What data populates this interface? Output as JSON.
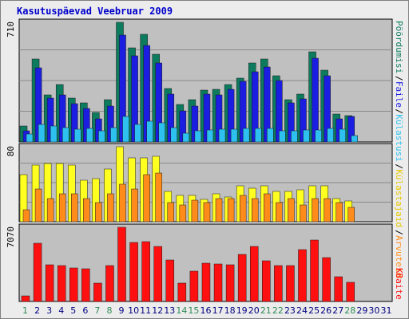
{
  "window": {
    "title": "Kasutuspäevad Veebruar 2009"
  },
  "chart_data": {
    "type": "bar",
    "title": "Kasutuspäevad Veebruar 2009",
    "categories": [
      "1",
      "2",
      "3",
      "4",
      "5",
      "6",
      "7",
      "8",
      "9",
      "10",
      "11",
      "12",
      "13",
      "14",
      "15",
      "16",
      "17",
      "18",
      "19",
      "20",
      "21",
      "22",
      "23",
      "24",
      "25",
      "26",
      "27",
      "28",
      "29",
      "30",
      "31"
    ],
    "weekend_days": [
      "1",
      "7",
      "8",
      "14",
      "15",
      "21",
      "22",
      "28"
    ],
    "absent_days": [
      "29",
      "30",
      "31"
    ],
    "panels": [
      {
        "name": "top",
        "ytick": "710",
        "ymax": 710,
        "grid": true,
        "right_labels": [
          "Pöördumisi",
          "Faile",
          "Külastusi"
        ],
        "series": [
          {
            "name": "Pöördumisi",
            "color": "#0d7b5e",
            "values": [
              94,
              494,
              278,
              339,
              259,
              234,
              175,
              250,
              710,
              560,
              637,
              521,
              317,
              223,
              250,
              308,
              313,
              339,
              379,
              467,
              490,
              392,
              250,
              283,
              533,
              427,
              166,
              155,
              null,
              null,
              null
            ]
          },
          {
            "name": "Faile",
            "color": "#1b1ee0",
            "values": [
              65,
              442,
              260,
              278,
              228,
              201,
              137,
              213,
              632,
              511,
              573,
              469,
              285,
              186,
              211,
              283,
              280,
              312,
              358,
              417,
              446,
              366,
              231,
              256,
              498,
              392,
              139,
              150,
              null,
              null,
              null
            ]
          },
          {
            "name": "Külastusi",
            "color": "#2ec1f0",
            "values": [
              48,
              106,
              95,
              84,
              78,
              82,
              67,
              84,
              150,
              105,
              123,
              113,
              84,
              53,
              65,
              73,
              76,
              77,
              82,
              81,
              81,
              65,
              68,
              70,
              72,
              81,
              78,
              38,
              null,
              null,
              null
            ]
          }
        ]
      },
      {
        "name": "middle",
        "ytick": "80",
        "ymax": 80,
        "grid": true,
        "right_labels": [
          "Külastajaid",
          "Arvuteid"
        ],
        "series": [
          {
            "name": "Külastajaid",
            "color": "#ffff20",
            "values": [
              50,
              60,
              62,
              62,
              60,
              44,
              46,
              56,
              80,
              68,
              68,
              70,
              32,
              28,
              28,
              24,
              30,
              26,
              38,
              36,
              38,
              32,
              32,
              34,
              38,
              38,
              25,
              22,
              null,
              null,
              null
            ]
          },
          {
            "name": "Arvuteid",
            "color": "#ff8c1a",
            "values": [
              13,
              35,
              25,
              30,
              30,
              25,
              20,
              30,
              40,
              35,
              50,
              52,
              20,
              18,
              23,
              20,
              25,
              25,
              28,
              25,
              30,
              20,
              25,
              18,
              25,
              25,
              20,
              15,
              null,
              null,
              null
            ]
          }
        ]
      },
      {
        "name": "bottom",
        "ytick": "7070",
        "ymax": 7070,
        "grid": false,
        "right_labels": [
          "KBaite"
        ],
        "series": [
          {
            "name": "KBaite",
            "color": "#ff1010",
            "values": [
              566,
              5525,
              3479,
              3455,
              3185,
              3112,
              1760,
              3425,
              7070,
              5619,
              5692,
              5212,
              3976,
              1745,
              2895,
              3683,
              3585,
              3475,
              4500,
              5215,
              3890,
              3445,
              3455,
              4976,
              5865,
              4212,
              2335,
              1830,
              null,
              null,
              null
            ]
          }
        ]
      }
    ]
  }
}
